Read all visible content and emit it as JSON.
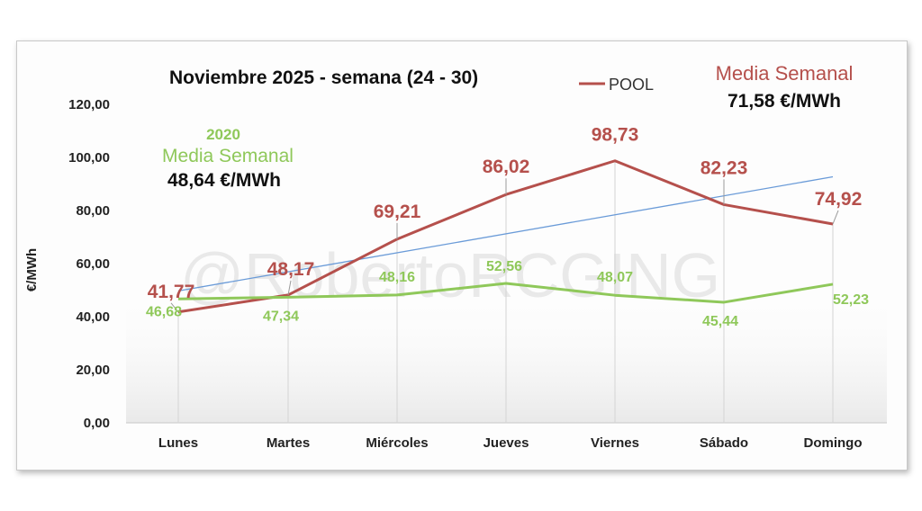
{
  "watermark": "@RobertoRCGING",
  "legend": {
    "pool_label": "POOL"
  },
  "pool_average": {
    "title": "Media Semanal",
    "value": "71,58 €/MWh"
  },
  "hist_average": {
    "year": "2020",
    "title": "Media Semanal",
    "value": "48,64 €/MWh"
  },
  "colors": {
    "pool": "#b5504c",
    "historical": "#8fc85a",
    "trend": "#6a9bd8"
  },
  "chart_data": {
    "type": "line",
    "title": "Noviembre 2025 - semana (24 - 30)",
    "ylabel": "€/MWh",
    "xlabel": "",
    "ylim": [
      0,
      120
    ],
    "yticks": [
      "0,00",
      "20,00",
      "40,00",
      "60,00",
      "80,00",
      "100,00",
      "120,00"
    ],
    "categories": [
      "Lunes",
      "Martes",
      "Miércoles",
      "Jueves",
      "Viernes",
      "Sábado",
      "Domingo"
    ],
    "series": [
      {
        "name": "POOL",
        "values": [
          41.77,
          48.17,
          69.21,
          86.02,
          98.73,
          82.23,
          74.92
        ],
        "labels": [
          "41,77",
          "48,17",
          "69,21",
          "86,02",
          "98,73",
          "82,23",
          "74,92"
        ]
      },
      {
        "values": [
          46.68,
          47.34,
          48.16,
          52.56,
          48.07,
          45.44,
          52.23
        ],
        "labels": [
          "46,68",
          "47,34",
          "48,16",
          "52,56",
          "48,07",
          "45,44",
          "52,23"
        ]
      }
    ],
    "trendline": {
      "start": 49.7,
      "end": 92.7
    },
    "grid": false,
    "legend_position": "top-center"
  }
}
